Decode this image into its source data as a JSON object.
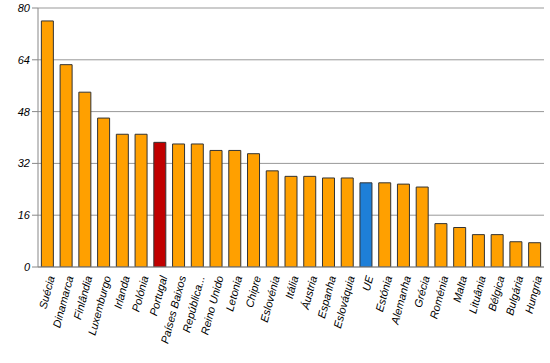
{
  "chart_data": {
    "type": "bar",
    "categories": [
      "Suécia",
      "Dinamarca",
      "Finlândia",
      "Luxemburgo",
      "Irlanda",
      "Polónia",
      "Portugal",
      "Países Baixos",
      "República...",
      "Reino Unido",
      "Letonia",
      "Chipre",
      "Eslovénia",
      "Itália",
      "Áustria",
      "Espanha",
      "Eslováquia",
      "UE",
      "Estónia",
      "Alemanha",
      "Grécia",
      "Roménia",
      "Malta",
      "Lituânia",
      "Bélgica",
      "Bulgária",
      "Hungria"
    ],
    "values": [
      76,
      62.5,
      54,
      46,
      41,
      41,
      38.5,
      38,
      38,
      36,
      36,
      35,
      29.7,
      28,
      28,
      27.5,
      27.5,
      26,
      26,
      25.6,
      24.7,
      13.4,
      12.2,
      10,
      10,
      7.8,
      7.5
    ],
    "colors": [
      "#ffa000",
      "#ffa000",
      "#ffa000",
      "#ffa000",
      "#ffa000",
      "#ffa000",
      "#c00000",
      "#ffa000",
      "#ffa000",
      "#ffa000",
      "#ffa000",
      "#ffa000",
      "#ffa000",
      "#ffa000",
      "#ffa000",
      "#ffa000",
      "#ffa000",
      "#1e7fd8",
      "#ffa000",
      "#ffa000",
      "#ffa000",
      "#ffa000",
      "#ffa000",
      "#ffa000",
      "#ffa000",
      "#ffa000",
      "#ffa000"
    ],
    "ylim": [
      0,
      80
    ],
    "yticks": [
      0,
      16,
      32,
      48,
      64,
      80
    ],
    "grid": true
  }
}
